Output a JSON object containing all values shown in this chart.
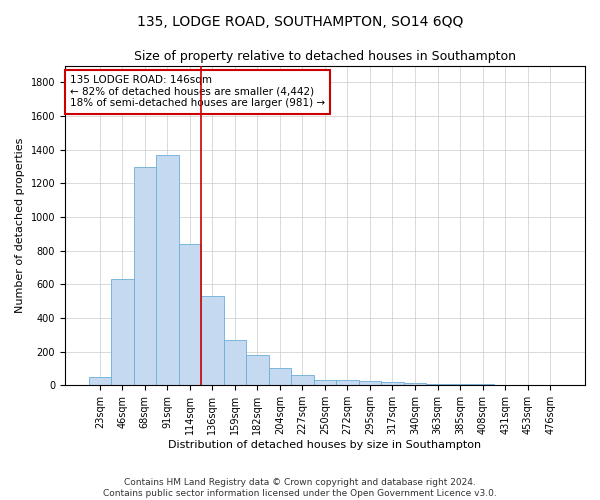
{
  "title": "135, LODGE ROAD, SOUTHAMPTON, SO14 6QQ",
  "subtitle": "Size of property relative to detached houses in Southampton",
  "xlabel": "Distribution of detached houses by size in Southampton",
  "ylabel": "Number of detached properties",
  "categories": [
    "23sqm",
    "46sqm",
    "68sqm",
    "91sqm",
    "114sqm",
    "136sqm",
    "159sqm",
    "182sqm",
    "204sqm",
    "227sqm",
    "250sqm",
    "272sqm",
    "295sqm",
    "317sqm",
    "340sqm",
    "363sqm",
    "385sqm",
    "408sqm",
    "431sqm",
    "453sqm",
    "476sqm"
  ],
  "values": [
    50,
    630,
    1300,
    1370,
    840,
    530,
    270,
    180,
    105,
    60,
    30,
    30,
    25,
    20,
    15,
    10,
    7,
    5,
    3,
    2,
    2
  ],
  "bar_color": "#c5d9f0",
  "bar_edge_color": "#6aaed6",
  "background_color": "#ffffff",
  "grid_color": "#cccccc",
  "vline_color": "#cc0000",
  "vline_x": 4.5,
  "annotation_line1": "135 LODGE ROAD: 146sqm",
  "annotation_line2": "← 82% of detached houses are smaller (4,442)",
  "annotation_line3": "18% of semi-detached houses are larger (981) →",
  "annotation_box_color": "#cc0000",
  "annotation_box_facecolor": "#ffffff",
  "ylim": [
    0,
    1900
  ],
  "yticks": [
    0,
    200,
    400,
    600,
    800,
    1000,
    1200,
    1400,
    1600,
    1800
  ],
  "footer_line1": "Contains HM Land Registry data © Crown copyright and database right 2024.",
  "footer_line2": "Contains public sector information licensed under the Open Government Licence v3.0.",
  "title_fontsize": 10,
  "subtitle_fontsize": 9,
  "axis_label_fontsize": 8,
  "tick_fontsize": 7,
  "annotation_fontsize": 7.5,
  "footer_fontsize": 6.5
}
